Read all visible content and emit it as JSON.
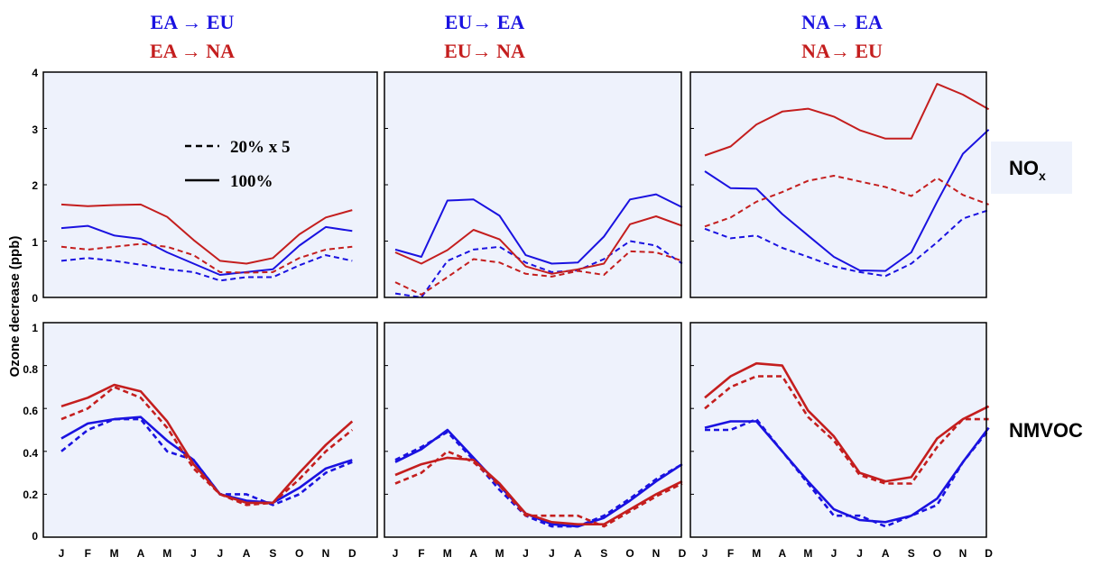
{
  "colors": {
    "blue": "#1a12e0",
    "red": "#c41e1e",
    "panel_bg": "#eef2fc"
  },
  "column_titles": [
    {
      "line1": "EA → EU",
      "line2": "EA → NA"
    },
    {
      "line1": "EU→ EA",
      "line2": "EU→ NA"
    },
    {
      "line1": "NA→ EA",
      "line2": "NA→ EU"
    }
  ],
  "row_labels": {
    "nox": "NOx",
    "nox_sub": "x",
    "nox_main": "NO",
    "nmvoc": "NMVOC"
  },
  "y_axis_label": "Ozone decrease (ppb)",
  "legend": {
    "dashed_label": "20% x 5",
    "solid_label": "100%"
  },
  "top_ticks": [
    "0",
    "1",
    "2",
    "3",
    "4"
  ],
  "bottom_ticks": [
    "0",
    "0.2",
    "0.4",
    "0.6",
    "0.8",
    "1"
  ],
  "chart_data": [
    {
      "type": "line",
      "panel": "EA→EU / EA→NA, NOx",
      "ylim": [
        0,
        4
      ],
      "grid": false,
      "categories": [
        "J",
        "F",
        "M",
        "A",
        "M",
        "J",
        "J",
        "A",
        "S",
        "O",
        "N",
        "D"
      ],
      "series": [
        {
          "color": "blue",
          "style": "solid",
          "values": [
            1.23,
            1.27,
            1.1,
            1.04,
            0.8,
            0.6,
            0.4,
            0.45,
            0.5,
            0.92,
            1.25,
            1.18
          ]
        },
        {
          "color": "blue",
          "style": "dashed",
          "values": [
            0.65,
            0.7,
            0.65,
            0.58,
            0.5,
            0.45,
            0.3,
            0.36,
            0.36,
            0.57,
            0.75,
            0.65
          ]
        },
        {
          "color": "red",
          "style": "solid",
          "values": [
            1.65,
            1.62,
            1.64,
            1.65,
            1.43,
            1.02,
            0.65,
            0.6,
            0.7,
            1.12,
            1.42,
            1.55
          ]
        },
        {
          "color": "red",
          "style": "dashed",
          "values": [
            0.9,
            0.85,
            0.9,
            0.95,
            0.9,
            0.75,
            0.45,
            0.44,
            0.45,
            0.7,
            0.85,
            0.9
          ]
        }
      ]
    },
    {
      "type": "line",
      "panel": "EU→EA / EU→NA, NOx",
      "ylim": [
        0,
        4
      ],
      "grid": false,
      "categories": [
        "J",
        "F",
        "M",
        "A",
        "M",
        "J",
        "J",
        "A",
        "S",
        "O",
        "N",
        "D"
      ],
      "series": [
        {
          "color": "blue",
          "style": "solid",
          "values": [
            0.85,
            0.72,
            1.72,
            1.74,
            1.45,
            0.75,
            0.6,
            0.62,
            1.08,
            1.74,
            1.83,
            1.6
          ]
        },
        {
          "color": "blue",
          "style": "dashed",
          "values": [
            0.07,
            0.0,
            0.65,
            0.85,
            0.9,
            0.62,
            0.45,
            0.48,
            0.68,
            1.0,
            0.92,
            0.6
          ]
        },
        {
          "color": "red",
          "style": "solid",
          "values": [
            0.8,
            0.6,
            0.84,
            1.2,
            1.03,
            0.55,
            0.42,
            0.5,
            0.6,
            1.3,
            1.44,
            1.27
          ]
        },
        {
          "color": "red",
          "style": "dashed",
          "values": [
            0.27,
            0.05,
            0.36,
            0.68,
            0.62,
            0.42,
            0.37,
            0.47,
            0.4,
            0.82,
            0.8,
            0.65
          ]
        }
      ]
    },
    {
      "type": "line",
      "panel": "NA→EA / NA→EU, NOx",
      "ylim": [
        0,
        4
      ],
      "grid": false,
      "categories": [
        "J",
        "F",
        "M",
        "A",
        "M",
        "J",
        "J",
        "A",
        "S",
        "O",
        "N",
        "D"
      ],
      "series": [
        {
          "color": "blue",
          "style": "solid",
          "values": [
            2.24,
            1.94,
            1.93,
            1.48,
            1.1,
            0.72,
            0.48,
            0.47,
            0.8,
            1.7,
            2.55,
            2.98
          ]
        },
        {
          "color": "blue",
          "style": "dashed",
          "values": [
            1.22,
            1.05,
            1.1,
            0.88,
            0.72,
            0.55,
            0.45,
            0.38,
            0.6,
            0.98,
            1.4,
            1.55
          ]
        },
        {
          "color": "red",
          "style": "solid",
          "values": [
            2.52,
            2.68,
            3.07,
            3.3,
            3.35,
            3.21,
            2.97,
            2.82,
            2.82,
            3.79,
            3.6,
            3.34
          ]
        },
        {
          "color": "red",
          "style": "dashed",
          "values": [
            1.26,
            1.42,
            1.7,
            1.87,
            2.07,
            2.16,
            2.06,
            1.96,
            1.8,
            2.12,
            1.82,
            1.65
          ]
        }
      ]
    },
    {
      "type": "line",
      "panel": "EA→EU / EA→NA, NMVOC",
      "ylim": [
        0,
        1
      ],
      "grid": false,
      "categories": [
        "J",
        "F",
        "M",
        "A",
        "M",
        "J",
        "J",
        "A",
        "S",
        "O",
        "N",
        "D"
      ],
      "series": [
        {
          "color": "blue",
          "style": "solid",
          "values": [
            0.46,
            0.53,
            0.55,
            0.56,
            0.45,
            0.36,
            0.2,
            0.17,
            0.16,
            0.23,
            0.32,
            0.36
          ]
        },
        {
          "color": "blue",
          "style": "dashed",
          "values": [
            0.4,
            0.5,
            0.55,
            0.55,
            0.4,
            0.36,
            0.2,
            0.2,
            0.15,
            0.2,
            0.3,
            0.35
          ]
        },
        {
          "color": "red",
          "style": "solid",
          "values": [
            0.61,
            0.65,
            0.71,
            0.68,
            0.54,
            0.34,
            0.2,
            0.16,
            0.16,
            0.3,
            0.43,
            0.54
          ]
        },
        {
          "color": "red",
          "style": "dashed",
          "values": [
            0.55,
            0.6,
            0.7,
            0.65,
            0.51,
            0.32,
            0.2,
            0.15,
            0.16,
            0.27,
            0.4,
            0.5
          ]
        }
      ]
    },
    {
      "type": "line",
      "panel": "EU→EA / EU→NA, NMVOC",
      "ylim": [
        0,
        1
      ],
      "grid": false,
      "categories": [
        "J",
        "F",
        "M",
        "A",
        "M",
        "J",
        "J",
        "A",
        "S",
        "O",
        "N",
        "D"
      ],
      "series": [
        {
          "color": "blue",
          "style": "solid",
          "values": [
            0.35,
            0.41,
            0.5,
            0.37,
            0.24,
            0.11,
            0.06,
            0.05,
            0.09,
            0.17,
            0.26,
            0.34
          ]
        },
        {
          "color": "blue",
          "style": "dashed",
          "values": [
            0.36,
            0.42,
            0.49,
            0.36,
            0.22,
            0.1,
            0.05,
            0.05,
            0.1,
            0.18,
            0.27,
            0.34
          ]
        },
        {
          "color": "red",
          "style": "solid",
          "values": [
            0.29,
            0.34,
            0.37,
            0.36,
            0.25,
            0.11,
            0.07,
            0.06,
            0.06,
            0.13,
            0.2,
            0.26
          ]
        },
        {
          "color": "red",
          "style": "dashed",
          "values": [
            0.25,
            0.3,
            0.4,
            0.35,
            0.24,
            0.1,
            0.1,
            0.1,
            0.05,
            0.12,
            0.19,
            0.25
          ]
        }
      ]
    },
    {
      "type": "line",
      "panel": "NA→EA / NA→EU, NMVOC",
      "ylim": [
        0,
        1
      ],
      "grid": false,
      "categories": [
        "J",
        "F",
        "M",
        "A",
        "M",
        "J",
        "J",
        "A",
        "S",
        "O",
        "N",
        "D"
      ],
      "series": [
        {
          "color": "blue",
          "style": "solid",
          "values": [
            0.51,
            0.54,
            0.54,
            0.4,
            0.26,
            0.13,
            0.08,
            0.07,
            0.1,
            0.18,
            0.35,
            0.51
          ]
        },
        {
          "color": "blue",
          "style": "dashed",
          "values": [
            0.5,
            0.5,
            0.55,
            0.4,
            0.25,
            0.1,
            0.1,
            0.05,
            0.1,
            0.15,
            0.35,
            0.5
          ]
        },
        {
          "color": "red",
          "style": "solid",
          "values": [
            0.65,
            0.75,
            0.81,
            0.8,
            0.59,
            0.47,
            0.3,
            0.26,
            0.28,
            0.46,
            0.55,
            0.61
          ]
        },
        {
          "color": "red",
          "style": "dashed",
          "values": [
            0.6,
            0.7,
            0.75,
            0.75,
            0.56,
            0.45,
            0.29,
            0.25,
            0.25,
            0.42,
            0.55,
            0.55
          ]
        }
      ]
    }
  ]
}
